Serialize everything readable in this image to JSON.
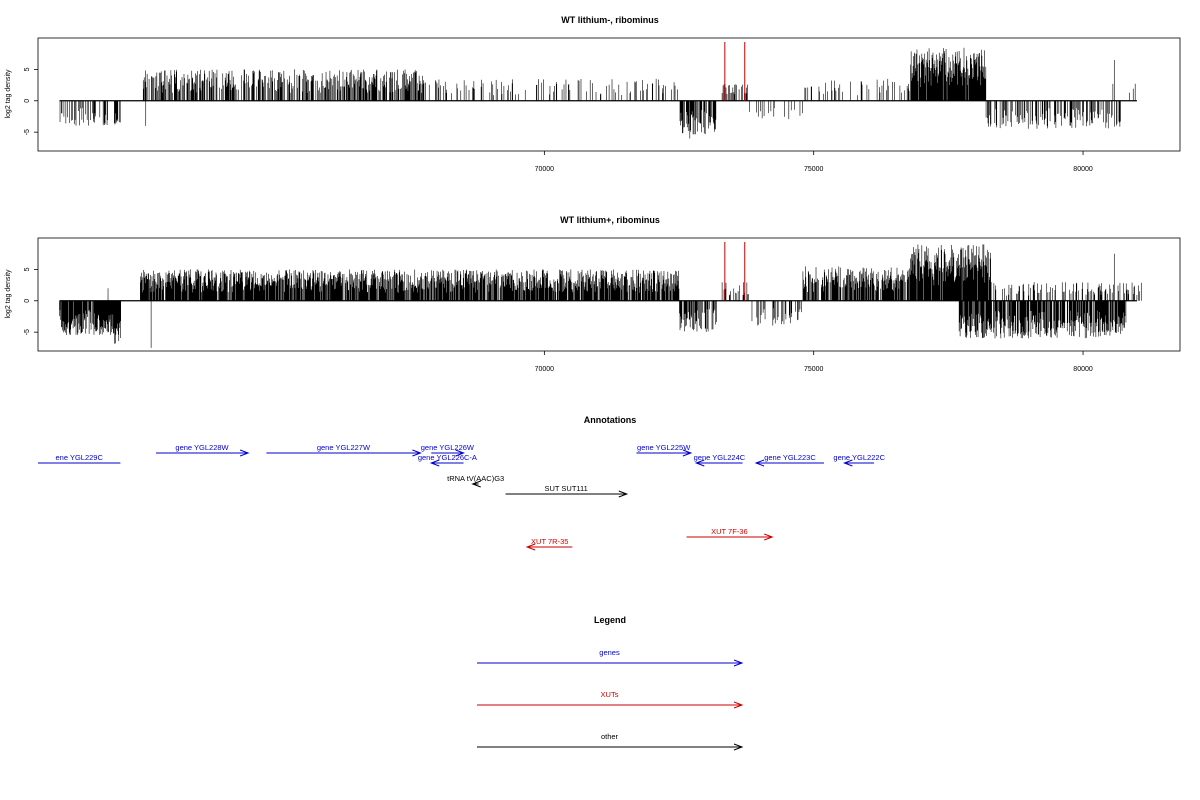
{
  "chart_data": [
    {
      "type": "bar",
      "title": "WT lithium-, ribominus",
      "xlabel": "",
      "ylabel": "log2 tag density",
      "xlim": [
        60600,
        81800
      ],
      "ylim": [
        -8,
        10
      ],
      "xticks": [
        70000,
        75000,
        80000
      ],
      "yticks": [
        -5,
        0,
        5
      ],
      "grid": false,
      "baseline_range": [
        61000,
        81000
      ],
      "highlight_lines": {
        "color": "#cc0000",
        "x": [
          73350,
          73720
        ]
      },
      "segments": [
        {
          "range": [
            61000,
            61900
          ],
          "dir": -1,
          "amp": 4,
          "density": 0.3
        },
        {
          "range": [
            62000,
            62150
          ],
          "dir": -1,
          "amp": 4,
          "density": 0.5
        },
        {
          "range": [
            62500,
            67800
          ],
          "dir": 1,
          "amp": 5,
          "density": 0.55
        },
        {
          "range": [
            67800,
            72500
          ],
          "dir": 1,
          "amp": 3.5,
          "density": 0.18
        },
        {
          "range": [
            72500,
            73200
          ],
          "dir": -1,
          "amp": 5.5,
          "density": 0.7
        },
        {
          "range": [
            73300,
            73800
          ],
          "dir": 1,
          "amp": 3,
          "density": 0.4
        },
        {
          "range": [
            73800,
            74800
          ],
          "dir": -1,
          "amp": 3,
          "density": 0.12
        },
        {
          "range": [
            74800,
            76800
          ],
          "dir": 1,
          "amp": 3.5,
          "density": 0.2
        },
        {
          "range": [
            76800,
            78200
          ],
          "dir": 1,
          "amp": 8.5,
          "density": 0.95
        },
        {
          "range": [
            78200,
            80700
          ],
          "dir": -1,
          "amp": 4.5,
          "density": 0.4
        },
        {
          "range": [
            80500,
            81100
          ],
          "dir": 1,
          "amp": 3,
          "density": 0.12
        }
      ],
      "spikes": [
        [
          80580,
          6.5
        ],
        [
          72700,
          -6
        ],
        [
          62600,
          -4
        ]
      ]
    },
    {
      "type": "bar",
      "title": "WT lithium+, ribominus",
      "xlabel": "",
      "ylabel": "log2 tag density",
      "xlim": [
        60600,
        81800
      ],
      "ylim": [
        -8,
        10
      ],
      "xticks": [
        70000,
        75000,
        80000
      ],
      "yticks": [
        -5,
        0,
        5
      ],
      "grid": false,
      "baseline_range": [
        61000,
        81000
      ],
      "highlight_lines": {
        "color": "#cc0000",
        "x": [
          73350,
          73720
        ]
      },
      "segments": [
        {
          "range": [
            61000,
            62100
          ],
          "dir": -1,
          "amp": 5.5,
          "density": 0.9
        },
        {
          "range": [
            62000,
            62150
          ],
          "dir": -1,
          "amp": 7,
          "density": 0.8
        },
        {
          "range": [
            62500,
            72500
          ],
          "dir": 1,
          "amp": 5,
          "density": 0.85
        },
        {
          "range": [
            72500,
            73200
          ],
          "dir": -1,
          "amp": 5,
          "density": 0.6
        },
        {
          "range": [
            73300,
            73800
          ],
          "dir": 1,
          "amp": 3,
          "density": 0.4
        },
        {
          "range": [
            73800,
            74800
          ],
          "dir": -1,
          "amp": 4,
          "density": 0.25
        },
        {
          "range": [
            74800,
            76800
          ],
          "dir": 1,
          "amp": 5.5,
          "density": 0.8
        },
        {
          "range": [
            76800,
            78300
          ],
          "dir": 1,
          "amp": 9,
          "density": 0.95
        },
        {
          "range": [
            77700,
            80800
          ],
          "dir": -1,
          "amp": 6,
          "density": 0.8
        },
        {
          "range": [
            78300,
            81100
          ],
          "dir": 1,
          "amp": 3,
          "density": 0.3
        }
      ],
      "spikes": [
        [
          80580,
          7.5
        ],
        [
          62700,
          -7.5
        ],
        [
          61900,
          2
        ]
      ]
    }
  ],
  "annotations": {
    "title": "Annotations",
    "xlim": [
      60600,
      81800
    ],
    "features": [
      {
        "label": "ene YGL229C",
        "color": "#0000cc",
        "start": 60600,
        "end": 62130,
        "dir": "none",
        "track": 2
      },
      {
        "label": "gene YGL228W",
        "color": "#0000cc",
        "start": 62790,
        "end": 64500,
        "dir": "right",
        "track": 1
      },
      {
        "label": "gene YGL227W",
        "color": "#0000cc",
        "start": 64840,
        "end": 67700,
        "dir": "right",
        "track": 1
      },
      {
        "label": "gene YGL226W",
        "color": "#0000cc",
        "start": 67900,
        "end": 68500,
        "dir": "right",
        "track": 1
      },
      {
        "label": "gene YGL226C-A",
        "color": "#0000cc",
        "start": 67900,
        "end": 68500,
        "dir": "left",
        "track": 2
      },
      {
        "label": "tRNA tV(AAC)G3",
        "color": "#000000",
        "start": 68670,
        "end": 68780,
        "dir": "left",
        "track": 3
      },
      {
        "label": "SUT SUT111",
        "color": "#000000",
        "start": 69280,
        "end": 71530,
        "dir": "right",
        "track": 4
      },
      {
        "label": "XUT 7R-35",
        "color": "#cc0000",
        "start": 69680,
        "end": 70520,
        "dir": "left",
        "track": 6
      },
      {
        "label": "gene YGL225W",
        "color": "#0000cc",
        "start": 71710,
        "end": 72720,
        "dir": "right",
        "track": 1
      },
      {
        "label": "gene YGL224C",
        "color": "#0000cc",
        "start": 72820,
        "end": 73680,
        "dir": "left",
        "track": 2
      },
      {
        "label": "XUT 7F-36",
        "color": "#cc0000",
        "start": 72640,
        "end": 74230,
        "dir": "right",
        "track": 5
      },
      {
        "label": "gene YGL223C",
        "color": "#0000cc",
        "start": 73930,
        "end": 75190,
        "dir": "left",
        "track": 2
      },
      {
        "label": "gene YGL222C",
        "color": "#0000cc",
        "start": 75570,
        "end": 76120,
        "dir": "left",
        "track": 2
      }
    ]
  },
  "legend": {
    "title": "Legend",
    "items": [
      {
        "label": "genes",
        "color": "#0000cc"
      },
      {
        "label": "XUTs",
        "color": "#cc0000"
      },
      {
        "label": "other",
        "color": "#000000"
      }
    ]
  }
}
